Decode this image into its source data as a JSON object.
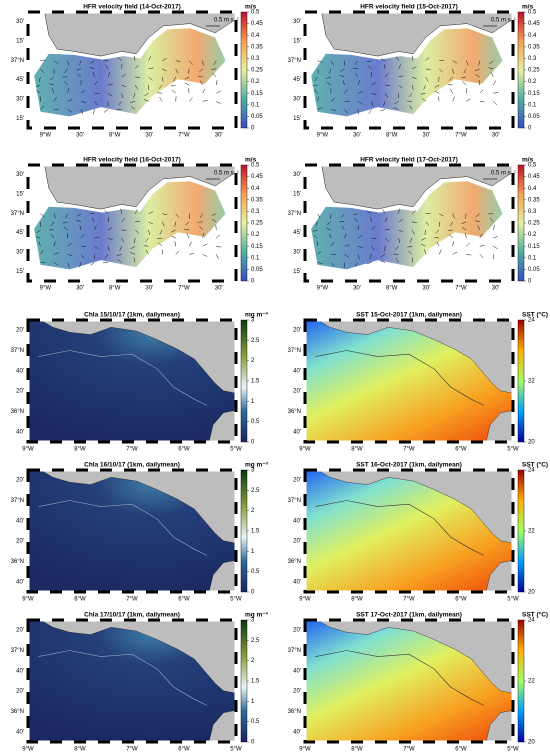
{
  "panels": [
    {
      "title": "HFR velocity field (14-Oct-2017)",
      "unit": "m/s",
      "scale_label": "0.5 m s⁻¹",
      "colorbar_ticks": [
        0,
        0.05,
        0.1,
        0.15,
        0.2,
        0.25,
        0.3,
        0.35,
        0.4,
        0.45,
        0.5
      ],
      "lat_labels": [
        "30'",
        "15'",
        "37°N",
        "45'",
        "30'",
        "15'"
      ],
      "lon_labels": [
        "9°W",
        "30'",
        "8°W",
        "30'",
        "7°W",
        "30'"
      ]
    },
    {
      "title": "HFR velocity field (15-Oct-2017)",
      "unit": "m/s",
      "scale_label": "0.5 m s⁻¹",
      "colorbar_ticks": [
        0,
        0.05,
        0.1,
        0.15,
        0.2,
        0.25,
        0.3,
        0.35,
        0.4,
        0.45,
        0.5
      ],
      "lat_labels": [
        "30'",
        "15'",
        "37°N",
        "45'",
        "30'",
        "15'"
      ],
      "lon_labels": [
        "9°W",
        "30'",
        "8°W",
        "30'",
        "7°W",
        "30'"
      ]
    },
    {
      "title": "HFR velocity field (16-Oct-2017)",
      "unit": "m/s",
      "scale_label": "0.5 m s⁻¹",
      "colorbar_ticks": [
        0,
        0.05,
        0.1,
        0.15,
        0.2,
        0.25,
        0.3,
        0.35,
        0.4,
        0.45,
        0.5
      ],
      "lat_labels": [
        "30'",
        "15'",
        "37°N",
        "45'",
        "30'",
        "15'"
      ],
      "lon_labels": [
        "9°W",
        "30'",
        "8°W",
        "30'",
        "7°W",
        "30'"
      ]
    },
    {
      "title": "HFR velocity field (17-Oct-2017)",
      "unit": "m/s",
      "scale_label": "0.5 m s⁻¹",
      "colorbar_ticks": [
        0,
        0.05,
        0.1,
        0.15,
        0.2,
        0.25,
        0.3,
        0.35,
        0.4,
        0.45,
        0.5
      ],
      "lat_labels": [
        "30'",
        "15'",
        "37°N",
        "45'",
        "30'",
        "15'"
      ],
      "lon_labels": [
        "9°W",
        "30'",
        "8°W",
        "30'",
        "7°W",
        "30'"
      ]
    },
    {
      "title": "Chla 15/10/17 (1km, dailymean)",
      "unit": "mg m⁻³",
      "colorbar_ticks": [
        0,
        0.5,
        1,
        1.5,
        2,
        2.5,
        3
      ],
      "lat_labels": [
        "20'",
        "37°N",
        "40'",
        "20'",
        "36°N",
        "40'"
      ],
      "lon_labels": [
        "9°W",
        "8°W",
        "7°W",
        "6°W",
        "5°W"
      ]
    },
    {
      "title": "SST 15-Oct-2017 (1km, dailymean)",
      "unit": "SST (°C)",
      "colorbar_ticks": [
        20,
        22,
        24
      ],
      "lat_labels": [
        "20'",
        "37°N",
        "40'",
        "20'",
        "36°N",
        "40'"
      ],
      "lon_labels": [
        "9°W",
        "8°W",
        "7°W",
        "6°W",
        "5°W"
      ]
    },
    {
      "title": "Chla 16/10/17 (1km, dailymean)",
      "unit": "mg m⁻³",
      "colorbar_ticks": [
        0,
        0.5,
        1,
        1.5,
        2,
        2.5,
        3
      ],
      "lat_labels": [
        "20'",
        "37°N",
        "40'",
        "20'",
        "36°N",
        "40'"
      ],
      "lon_labels": [
        "9°W",
        "8°W",
        "7°W",
        "6°W",
        "5°W"
      ]
    },
    {
      "title": "SST 16-Oct-2017 (1km, dailymean)",
      "unit": "SST (°C)",
      "colorbar_ticks": [
        20,
        22,
        24
      ],
      "lat_labels": [
        "20'",
        "37°N",
        "40'",
        "20'",
        "36°N",
        "40'"
      ],
      "lon_labels": [
        "9°W",
        "8°W",
        "7°W",
        "6°W",
        "5°W"
      ]
    },
    {
      "title": "Chla 17/10/17 (1km, dailymean)",
      "unit": "mg m⁻³",
      "colorbar_ticks": [
        0,
        0.5,
        1,
        1.5,
        2,
        2.5,
        3
      ],
      "lat_labels": [
        "20'",
        "37°N",
        "40'",
        "20'",
        "36°N",
        "40'"
      ],
      "lon_labels": [
        "9°W",
        "8°W",
        "7°W",
        "6°W",
        "5°W"
      ]
    },
    {
      "title": "SST 17-Oct-2017 (1km, dailymean)",
      "unit": "SST (°C)",
      "colorbar_ticks": [
        20,
        22,
        24
      ],
      "lat_labels": [
        "20'",
        "37°N",
        "40'",
        "20'",
        "36°N",
        "40'"
      ],
      "lon_labels": [
        "9°W",
        "8°W",
        "7°W",
        "6°W",
        "5°W"
      ]
    }
  ]
}
